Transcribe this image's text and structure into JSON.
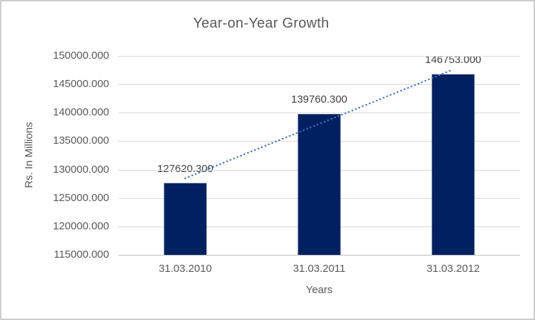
{
  "chart_data": {
    "type": "bar",
    "title": "Year-on-Year Growth",
    "xlabel": "Years",
    "ylabel": "Rs. In Millions",
    "categories": [
      "31.03.2010",
      "31.03.2011",
      "31.03.2012"
    ],
    "values": [
      127620.3,
      139760.3,
      146753.0
    ],
    "data_labels": [
      "127620.300",
      "139760.300",
      "146753.000"
    ],
    "ylim": [
      115000,
      150000
    ],
    "ytick_step": 5000,
    "ytick_labels": [
      "150000.000",
      "145000.000",
      "140000.000",
      "135000.000",
      "130000.000",
      "125000.000",
      "120000.000",
      "115000.000"
    ],
    "grid": true,
    "legend": false,
    "trendline": {
      "type": "linear",
      "style": "dotted"
    },
    "colors": {
      "bar": "#002060",
      "trendline": "#4472C4",
      "gridline": "#D9D9D9",
      "axis_line": "#BFBFBF",
      "text": "#595959",
      "data_label_text": "#404040",
      "border": "#CFCDCB",
      "background": "#FFFFFF"
    }
  }
}
